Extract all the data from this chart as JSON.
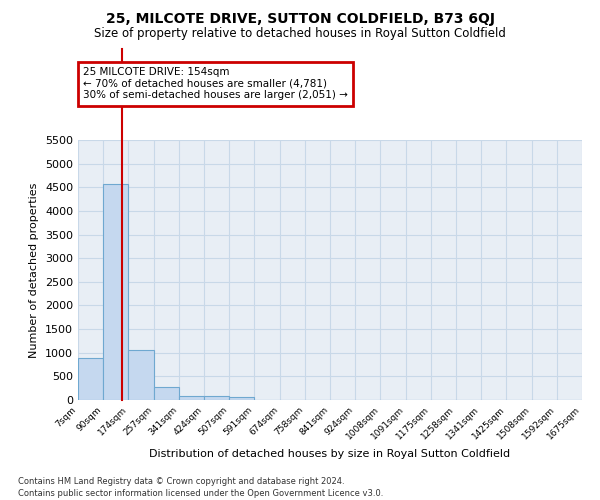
{
  "title": "25, MILCOTE DRIVE, SUTTON COLDFIELD, B73 6QJ",
  "subtitle": "Size of property relative to detached houses in Royal Sutton Coldfield",
  "xlabel": "Distribution of detached houses by size in Royal Sutton Coldfield",
  "ylabel": "Number of detached properties",
  "footnote1": "Contains HM Land Registry data © Crown copyright and database right 2024.",
  "footnote2": "Contains public sector information licensed under the Open Government Licence v3.0.",
  "bar_color": "#c5d8ef",
  "bar_edge_color": "#6fa8d0",
  "grid_color": "#c8d8e8",
  "annotation_box_color": "#cc0000",
  "annotation_line1": "25 MILCOTE DRIVE: 154sqm",
  "annotation_line2": "← 70% of detached houses are smaller (4,781)",
  "annotation_line3": "30% of semi-detached houses are larger (2,051) →",
  "property_line_color": "#cc0000",
  "property_sqm": 154,
  "bin_edges": [
    7,
    90,
    174,
    257,
    341,
    424,
    507,
    591,
    674,
    758,
    841,
    924,
    1008,
    1091,
    1175,
    1258,
    1341,
    1425,
    1508,
    1592,
    1675
  ],
  "bin_labels": [
    "7sqm",
    "90sqm",
    "174sqm",
    "257sqm",
    "341sqm",
    "424sqm",
    "507sqm",
    "591sqm",
    "674sqm",
    "758sqm",
    "841sqm",
    "924sqm",
    "1008sqm",
    "1091sqm",
    "1175sqm",
    "1258sqm",
    "1341sqm",
    "1425sqm",
    "1508sqm",
    "1592sqm",
    "1675sqm"
  ],
  "bar_heights": [
    880,
    4560,
    1060,
    280,
    90,
    80,
    55,
    0,
    0,
    0,
    0,
    0,
    0,
    0,
    0,
    0,
    0,
    0,
    0,
    0
  ],
  "ylim": [
    0,
    5500
  ],
  "yticks": [
    0,
    500,
    1000,
    1500,
    2000,
    2500,
    3000,
    3500,
    4000,
    4500,
    5000,
    5500
  ],
  "bg_color": "#e8eef5",
  "title_fontsize": 10,
  "subtitle_fontsize": 8.5,
  "ylabel_fontsize": 8,
  "xlabel_fontsize": 8,
  "ytick_fontsize": 8,
  "xtick_fontsize": 6.5,
  "footnote_fontsize": 6
}
